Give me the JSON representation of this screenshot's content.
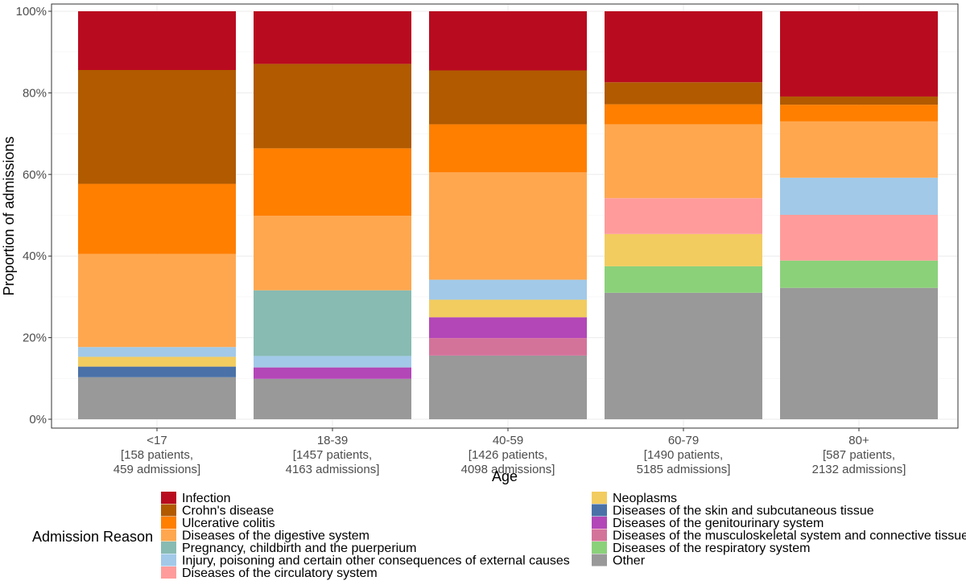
{
  "chart_data": {
    "type": "bar",
    "stacked": true,
    "ylabel": "Proportion of admissions",
    "xlabel": "Age",
    "ylim": [
      0,
      100
    ],
    "y_ticks": [
      "0%",
      "20%",
      "40%",
      "60%",
      "80%",
      "100%"
    ],
    "categories": [
      {
        "age": "<17",
        "patients": "[158 patients,",
        "admissions": "459 admissions]"
      },
      {
        "age": "18-39",
        "patients": "[1457 patients,",
        "admissions": "4163 admissions]"
      },
      {
        "age": "40-59",
        "patients": "[1426 patients,",
        "admissions": "4098 admissions]"
      },
      {
        "age": "60-79",
        "patients": "[1490 patients,",
        "admissions": "5185 admissions]"
      },
      {
        "age": "80+",
        "patients": "[587 patients,",
        "admissions": "2132 admissions]"
      }
    ],
    "legend_title": "Admission Reason",
    "series": [
      {
        "name": "Other",
        "color": "#999999",
        "values": [
          10.3,
          9.9,
          15.6,
          31.0,
          32.2
        ]
      },
      {
        "name": "Diseases of the respiratory system",
        "color": "#8BD17A",
        "values": [
          0,
          0,
          0,
          6.5,
          6.7
        ]
      },
      {
        "name": "Diseases of the musculoskeletal system and connective tissue",
        "color": "#D4739A",
        "values": [
          0,
          0,
          4.3,
          0,
          0
        ]
      },
      {
        "name": "Diseases of the genitourinary system",
        "color": "#B347B8",
        "values": [
          0,
          2.8,
          5.1,
          0,
          0
        ]
      },
      {
        "name": "Diseases of the skin and subcutaneous tissue",
        "color": "#4A72A8",
        "values": [
          2.6,
          0,
          0,
          0,
          0
        ]
      },
      {
        "name": "Neoplasms",
        "color": "#F2CC5F",
        "values": [
          2.4,
          0,
          4.3,
          7.9,
          0
        ]
      },
      {
        "name": "Diseases of the circulatory system",
        "color": "#FF9C9B",
        "values": [
          0,
          0,
          0,
          8.8,
          11.2
        ]
      },
      {
        "name": "Injury, poisoning and certain other consequences of external causes",
        "color": "#A2C9E8",
        "values": [
          2.4,
          2.8,
          4.9,
          0,
          9.1
        ]
      },
      {
        "name": "Pregnancy, childbirth and the puerperium",
        "color": "#88BBB2",
        "values": [
          0,
          16.1,
          0,
          0,
          0
        ]
      },
      {
        "name": "Diseases of the digestive system",
        "color": "#FFA74F",
        "values": [
          22.8,
          18.3,
          26.3,
          18.1,
          13.8
        ]
      },
      {
        "name": "Ulcerative colitis",
        "color": "#FF7F00",
        "values": [
          17.2,
          16.5,
          11.8,
          4.9,
          4.1
        ]
      },
      {
        "name": "Crohn's disease",
        "color": "#B15A00",
        "values": [
          27.9,
          20.7,
          13.2,
          5.4,
          2.0
        ]
      },
      {
        "name": "Infection",
        "color": "#B90B1F",
        "values": [
          14.4,
          12.9,
          14.5,
          17.4,
          20.9
        ]
      }
    ],
    "legend_order": [
      "Infection",
      "Crohn's disease",
      "Ulcerative colitis",
      "Diseases of the digestive system",
      "Pregnancy, childbirth and the puerperium",
      "Injury, poisoning and certain other consequences of external causes",
      "Diseases of the circulatory system",
      "Neoplasms",
      "Diseases of the skin and subcutaneous tissue",
      "Diseases of the genitourinary system",
      "Diseases of the musculoskeletal system and connective tissue",
      "Diseases of the respiratory system",
      "Other"
    ]
  }
}
